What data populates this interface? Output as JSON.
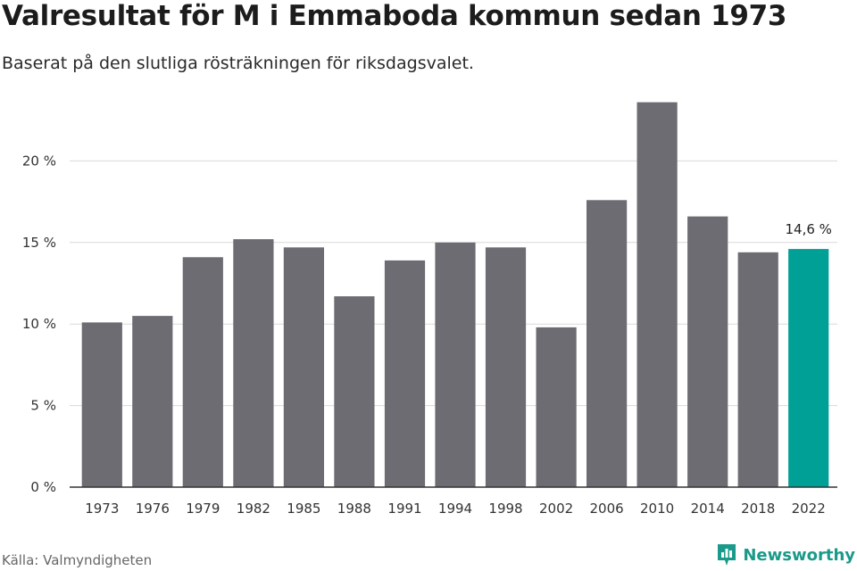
{
  "header": {
    "title": "Valresultat för M i Emmaboda kommun sedan 1973",
    "subtitle": "Baserat på den slutliga rösträkningen för riksdagsvalet."
  },
  "footer": {
    "source": "Källa: Valmyndigheten",
    "brand": "Newsworthy"
  },
  "colors": {
    "bar": "#6d6c72",
    "highlight": "#00a096",
    "brand": "#1a9a8a",
    "grid": "#d9d9d9",
    "axis": "#333333"
  },
  "chart_data": {
    "type": "bar",
    "title": "Valresultat för M i Emmaboda kommun sedan 1973",
    "subtitle": "Baserat på den slutliga rösträkningen för riksdagsvalet.",
    "xlabel": "",
    "ylabel": "",
    "categories": [
      "1973",
      "1976",
      "1979",
      "1982",
      "1985",
      "1988",
      "1991",
      "1994",
      "1998",
      "2002",
      "2006",
      "2010",
      "2014",
      "2018",
      "2022"
    ],
    "values": [
      10.1,
      10.5,
      14.1,
      15.2,
      14.7,
      11.7,
      13.9,
      15.0,
      14.7,
      9.8,
      17.6,
      23.6,
      16.6,
      14.4,
      14.6
    ],
    "unit": "%",
    "ylim": [
      0,
      25
    ],
    "yticks": [
      0,
      5,
      10,
      15,
      20
    ],
    "ytick_labels": [
      "0 %",
      "5 %",
      "10 %",
      "15 %",
      "20 %"
    ],
    "grid": true,
    "legend": "none",
    "highlight_category": "2022",
    "annotations": [
      {
        "category": "2022",
        "text": "14,6 %"
      }
    ]
  }
}
